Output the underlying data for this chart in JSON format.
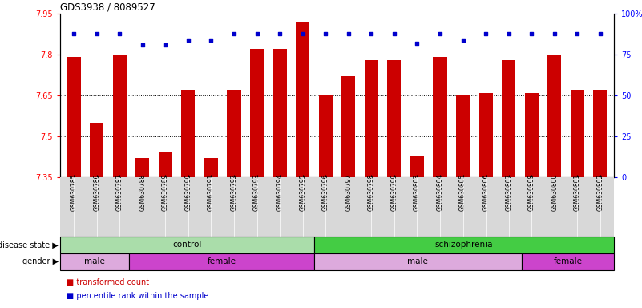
{
  "title": "GDS3938 / 8089527",
  "samples": [
    "GSM630785",
    "GSM630786",
    "GSM630787",
    "GSM630788",
    "GSM630789",
    "GSM630790",
    "GSM630791",
    "GSM630792",
    "GSM630793",
    "GSM630794",
    "GSM630795",
    "GSM630796",
    "GSM630797",
    "GSM630798",
    "GSM630799",
    "GSM630803",
    "GSM630804",
    "GSM630805",
    "GSM630806",
    "GSM630807",
    "GSM630808",
    "GSM630800",
    "GSM630801",
    "GSM630802"
  ],
  "bar_values": [
    7.79,
    7.55,
    7.8,
    7.42,
    7.44,
    7.67,
    7.42,
    7.67,
    7.82,
    7.82,
    7.92,
    7.65,
    7.72,
    7.78,
    7.78,
    7.43,
    7.79,
    7.65,
    7.66,
    7.78,
    7.66,
    7.8,
    7.67,
    7.67
  ],
  "percentile_values": [
    88,
    88,
    88,
    81,
    81,
    84,
    84,
    88,
    88,
    88,
    88,
    88,
    88,
    88,
    88,
    82,
    88,
    84,
    88,
    88,
    88,
    88,
    88,
    88
  ],
  "ylim_left": [
    7.35,
    7.95
  ],
  "ylim_right": [
    0,
    100
  ],
  "yticks_left": [
    7.35,
    7.5,
    7.65,
    7.8,
    7.95
  ],
  "yticks_right": [
    0,
    25,
    50,
    75,
    100
  ],
  "bar_color": "#cc0000",
  "dot_color": "#0000cc",
  "label_bg_color": "#d8d8d8",
  "disease_blocks": [
    {
      "start": 0,
      "end": 11,
      "label": "control",
      "color": "#aaddaa"
    },
    {
      "start": 11,
      "end": 24,
      "label": "schizophrenia",
      "color": "#44cc44"
    }
  ],
  "gender_blocks": [
    {
      "start": 0,
      "end": 3,
      "label": "male",
      "color": "#ddaadd"
    },
    {
      "start": 3,
      "end": 11,
      "label": "female",
      "color": "#cc44cc"
    },
    {
      "start": 11,
      "end": 20,
      "label": "male",
      "color": "#ddaadd"
    },
    {
      "start": 20,
      "end": 24,
      "label": "female",
      "color": "#cc44cc"
    }
  ],
  "legend_items": [
    {
      "label": "transformed count",
      "color": "#cc0000"
    },
    {
      "label": "percentile rank within the sample",
      "color": "#0000cc"
    }
  ],
  "left_labels": [
    {
      "text": "disease state",
      "row": "disease"
    },
    {
      "text": "gender",
      "row": "gender"
    }
  ]
}
